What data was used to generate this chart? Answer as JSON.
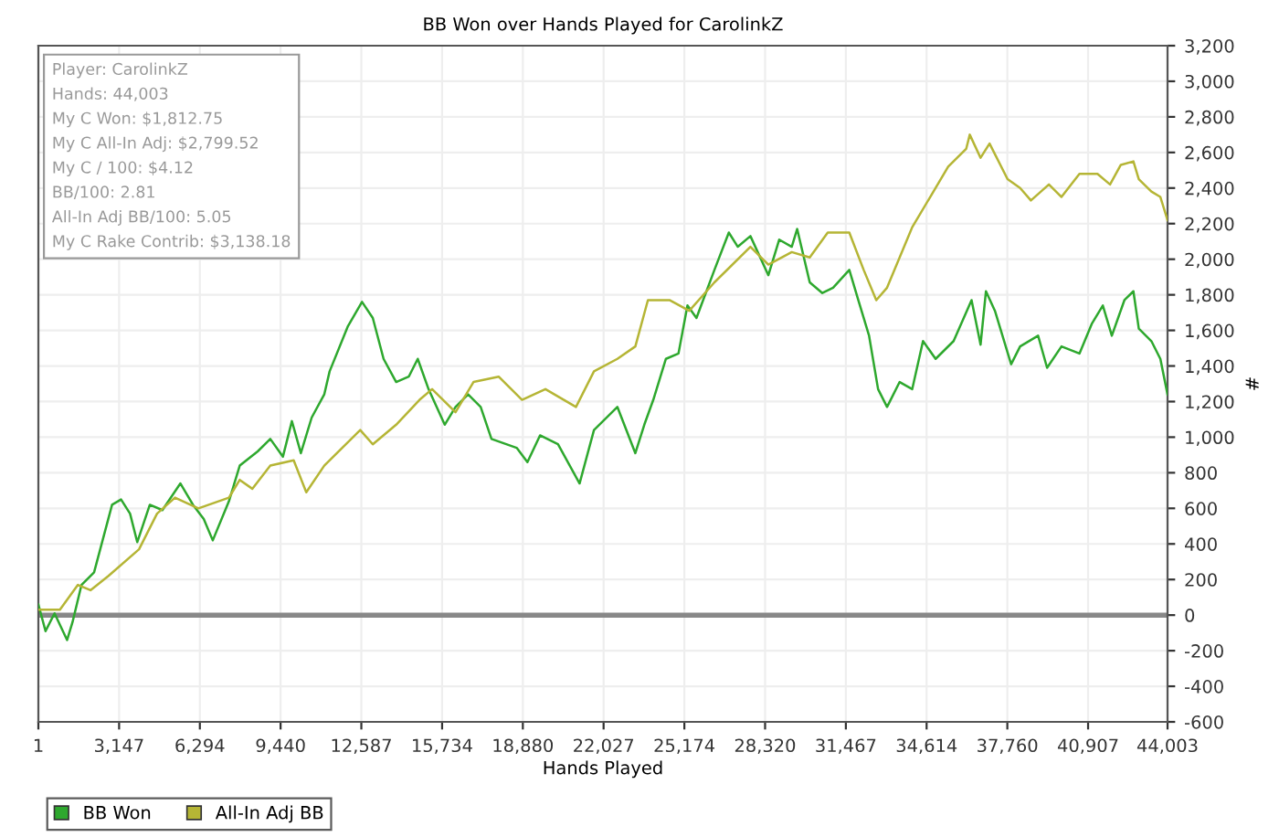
{
  "chart_data": {
    "type": "line",
    "title": "BB Won over Hands Played for CarolinkZ",
    "xlabel": "Hands Played",
    "ylabel": "#",
    "annotations": [
      "Player: CarolinkZ",
      "Hands: 44,003",
      "My C Won: $1,812.75",
      "My C All-In Adj: $2,799.52",
      "My C / 100: $4.12",
      "BB/100: 2.81",
      "All-In Adj BB/100: 5.05",
      "My C Rake Contrib: $3,138.18"
    ],
    "series": [
      {
        "name": "BB Won",
        "color": "#2ea82e",
        "x": [
          1,
          280,
          631,
          1121,
          1331,
          1682,
          2172,
          2873,
          3223,
          3574,
          3854,
          4344,
          4835,
          5536,
          6026,
          6446,
          6797,
          7427,
          7848,
          8548,
          9039,
          9530,
          9880,
          10230,
          10651,
          11141,
          11351,
          12052,
          12613,
          13033,
          13453,
          13944,
          14434,
          14785,
          15205,
          15836,
          16256,
          16747,
          17237,
          17658,
          18639,
          19059,
          19550,
          20250,
          21091,
          21652,
          22563,
          23264,
          23614,
          23964,
          24455,
          24945,
          25295,
          25646,
          26346,
          26907,
          27257,
          27748,
          28448,
          28869,
          29359,
          29570,
          30060,
          30551,
          30971,
          31602,
          31952,
          32372,
          32723,
          33073,
          33563,
          34054,
          34474,
          34965,
          35666,
          36366,
          36717,
          36927,
          37277,
          37908,
          38258,
          38959,
          39309,
          39870,
          40570,
          41061,
          41481,
          41832,
          42322,
          42673,
          42883,
          43373,
          43723,
          44003
        ],
        "values": [
          60,
          -90,
          10,
          -140,
          -40,
          170,
          240,
          620,
          650,
          570,
          410,
          620,
          590,
          740,
          620,
          540,
          420,
          640,
          840,
          920,
          990,
          890,
          1090,
          910,
          1110,
          1240,
          1370,
          1620,
          1760,
          1670,
          1440,
          1310,
          1340,
          1440,
          1270,
          1070,
          1170,
          1240,
          1170,
          990,
          940,
          860,
          1010,
          960,
          740,
          1040,
          1170,
          910,
          1070,
          1210,
          1440,
          1470,
          1740,
          1670,
          1940,
          2150,
          2070,
          2130,
          1910,
          2110,
          2070,
          2170,
          1870,
          1810,
          1840,
          1940,
          1770,
          1570,
          1270,
          1170,
          1310,
          1270,
          1540,
          1440,
          1540,
          1770,
          1520,
          1820,
          1710,
          1410,
          1510,
          1570,
          1390,
          1510,
          1470,
          1640,
          1740,
          1570,
          1770,
          1820,
          1610,
          1540,
          1440,
          1240
        ]
      },
      {
        "name": "All-In Adj BB",
        "color": "#b5b535",
        "x": [
          1,
          841,
          1542,
          2032,
          2733,
          3924,
          4625,
          5325,
          6236,
          7427,
          7848,
          8338,
          9039,
          9950,
          10441,
          11141,
          12543,
          13033,
          13944,
          14855,
          15345,
          16256,
          16957,
          17938,
          18849,
          19760,
          20951,
          21652,
          22563,
          23264,
          23754,
          24595,
          25365,
          26346,
          27748,
          28448,
          29359,
          30060,
          30761,
          31602,
          32162,
          32653,
          33073,
          34054,
          34755,
          35455,
          36156,
          36296,
          36717,
          37067,
          37768,
          38258,
          38679,
          39380,
          39870,
          40570,
          41271,
          41762,
          42182,
          42673,
          42883,
          43373,
          43723,
          44003
        ],
        "values": [
          30,
          30,
          170,
          140,
          220,
          370,
          570,
          660,
          600,
          660,
          760,
          710,
          840,
          870,
          690,
          840,
          1040,
          960,
          1070,
          1210,
          1270,
          1140,
          1310,
          1340,
          1210,
          1270,
          1170,
          1370,
          1440,
          1510,
          1770,
          1770,
          1710,
          1870,
          2070,
          1970,
          2040,
          2010,
          2150,
          2150,
          1940,
          1770,
          1840,
          2180,
          2350,
          2520,
          2620,
          2700,
          2570,
          2650,
          2450,
          2400,
          2330,
          2420,
          2350,
          2480,
          2480,
          2420,
          2530,
          2550,
          2450,
          2380,
          2350,
          2220
        ]
      }
    ],
    "xlim": [
      1,
      44003
    ],
    "xticks": [
      1,
      {
        "value": 3147,
        "label": "3,147"
      },
      {
        "value": 6294,
        "label": "6,294"
      },
      {
        "value": 9440,
        "label": "9,440"
      },
      {
        "value": 12587,
        "label": "12,587"
      },
      {
        "value": 15734,
        "label": "15,734"
      },
      {
        "value": 18880,
        "label": "18,880"
      },
      {
        "value": 22027,
        "label": "22,027"
      },
      {
        "value": 25174,
        "label": "25,174"
      },
      {
        "value": 28320,
        "label": "28,320"
      },
      {
        "value": 31467,
        "label": "31,467"
      },
      {
        "value": 34614,
        "label": "34,614"
      },
      {
        "value": 37760,
        "label": "37,760"
      },
      {
        "value": 40907,
        "label": "40,907"
      },
      {
        "value": 44003,
        "label": "44,003"
      }
    ],
    "ylim": [
      -600,
      3200
    ],
    "yticks": [
      -600,
      -400,
      -200,
      0,
      200,
      400,
      600,
      800,
      {
        "value": 1000,
        "label": "1,000"
      },
      {
        "value": 1200,
        "label": "1,200"
      },
      {
        "value": 1400,
        "label": "1,400"
      },
      {
        "value": 1600,
        "label": "1,600"
      },
      {
        "value": 1800,
        "label": "1,800"
      },
      {
        "value": 2000,
        "label": "2,000"
      },
      {
        "value": 2200,
        "label": "2,200"
      },
      {
        "value": 2400,
        "label": "2,400"
      },
      {
        "value": 2600,
        "label": "2,600"
      },
      {
        "value": 2800,
        "label": "2,800"
      },
      {
        "value": 3000,
        "label": "3,000"
      },
      {
        "value": 3200,
        "label": "3,200"
      }
    ],
    "ref_lines": [
      {
        "axis": "y",
        "value": 0,
        "color": "#888888"
      }
    ],
    "grid": true,
    "legend": "bottom left",
    "marker": "none",
    "line_style": "solid"
  }
}
